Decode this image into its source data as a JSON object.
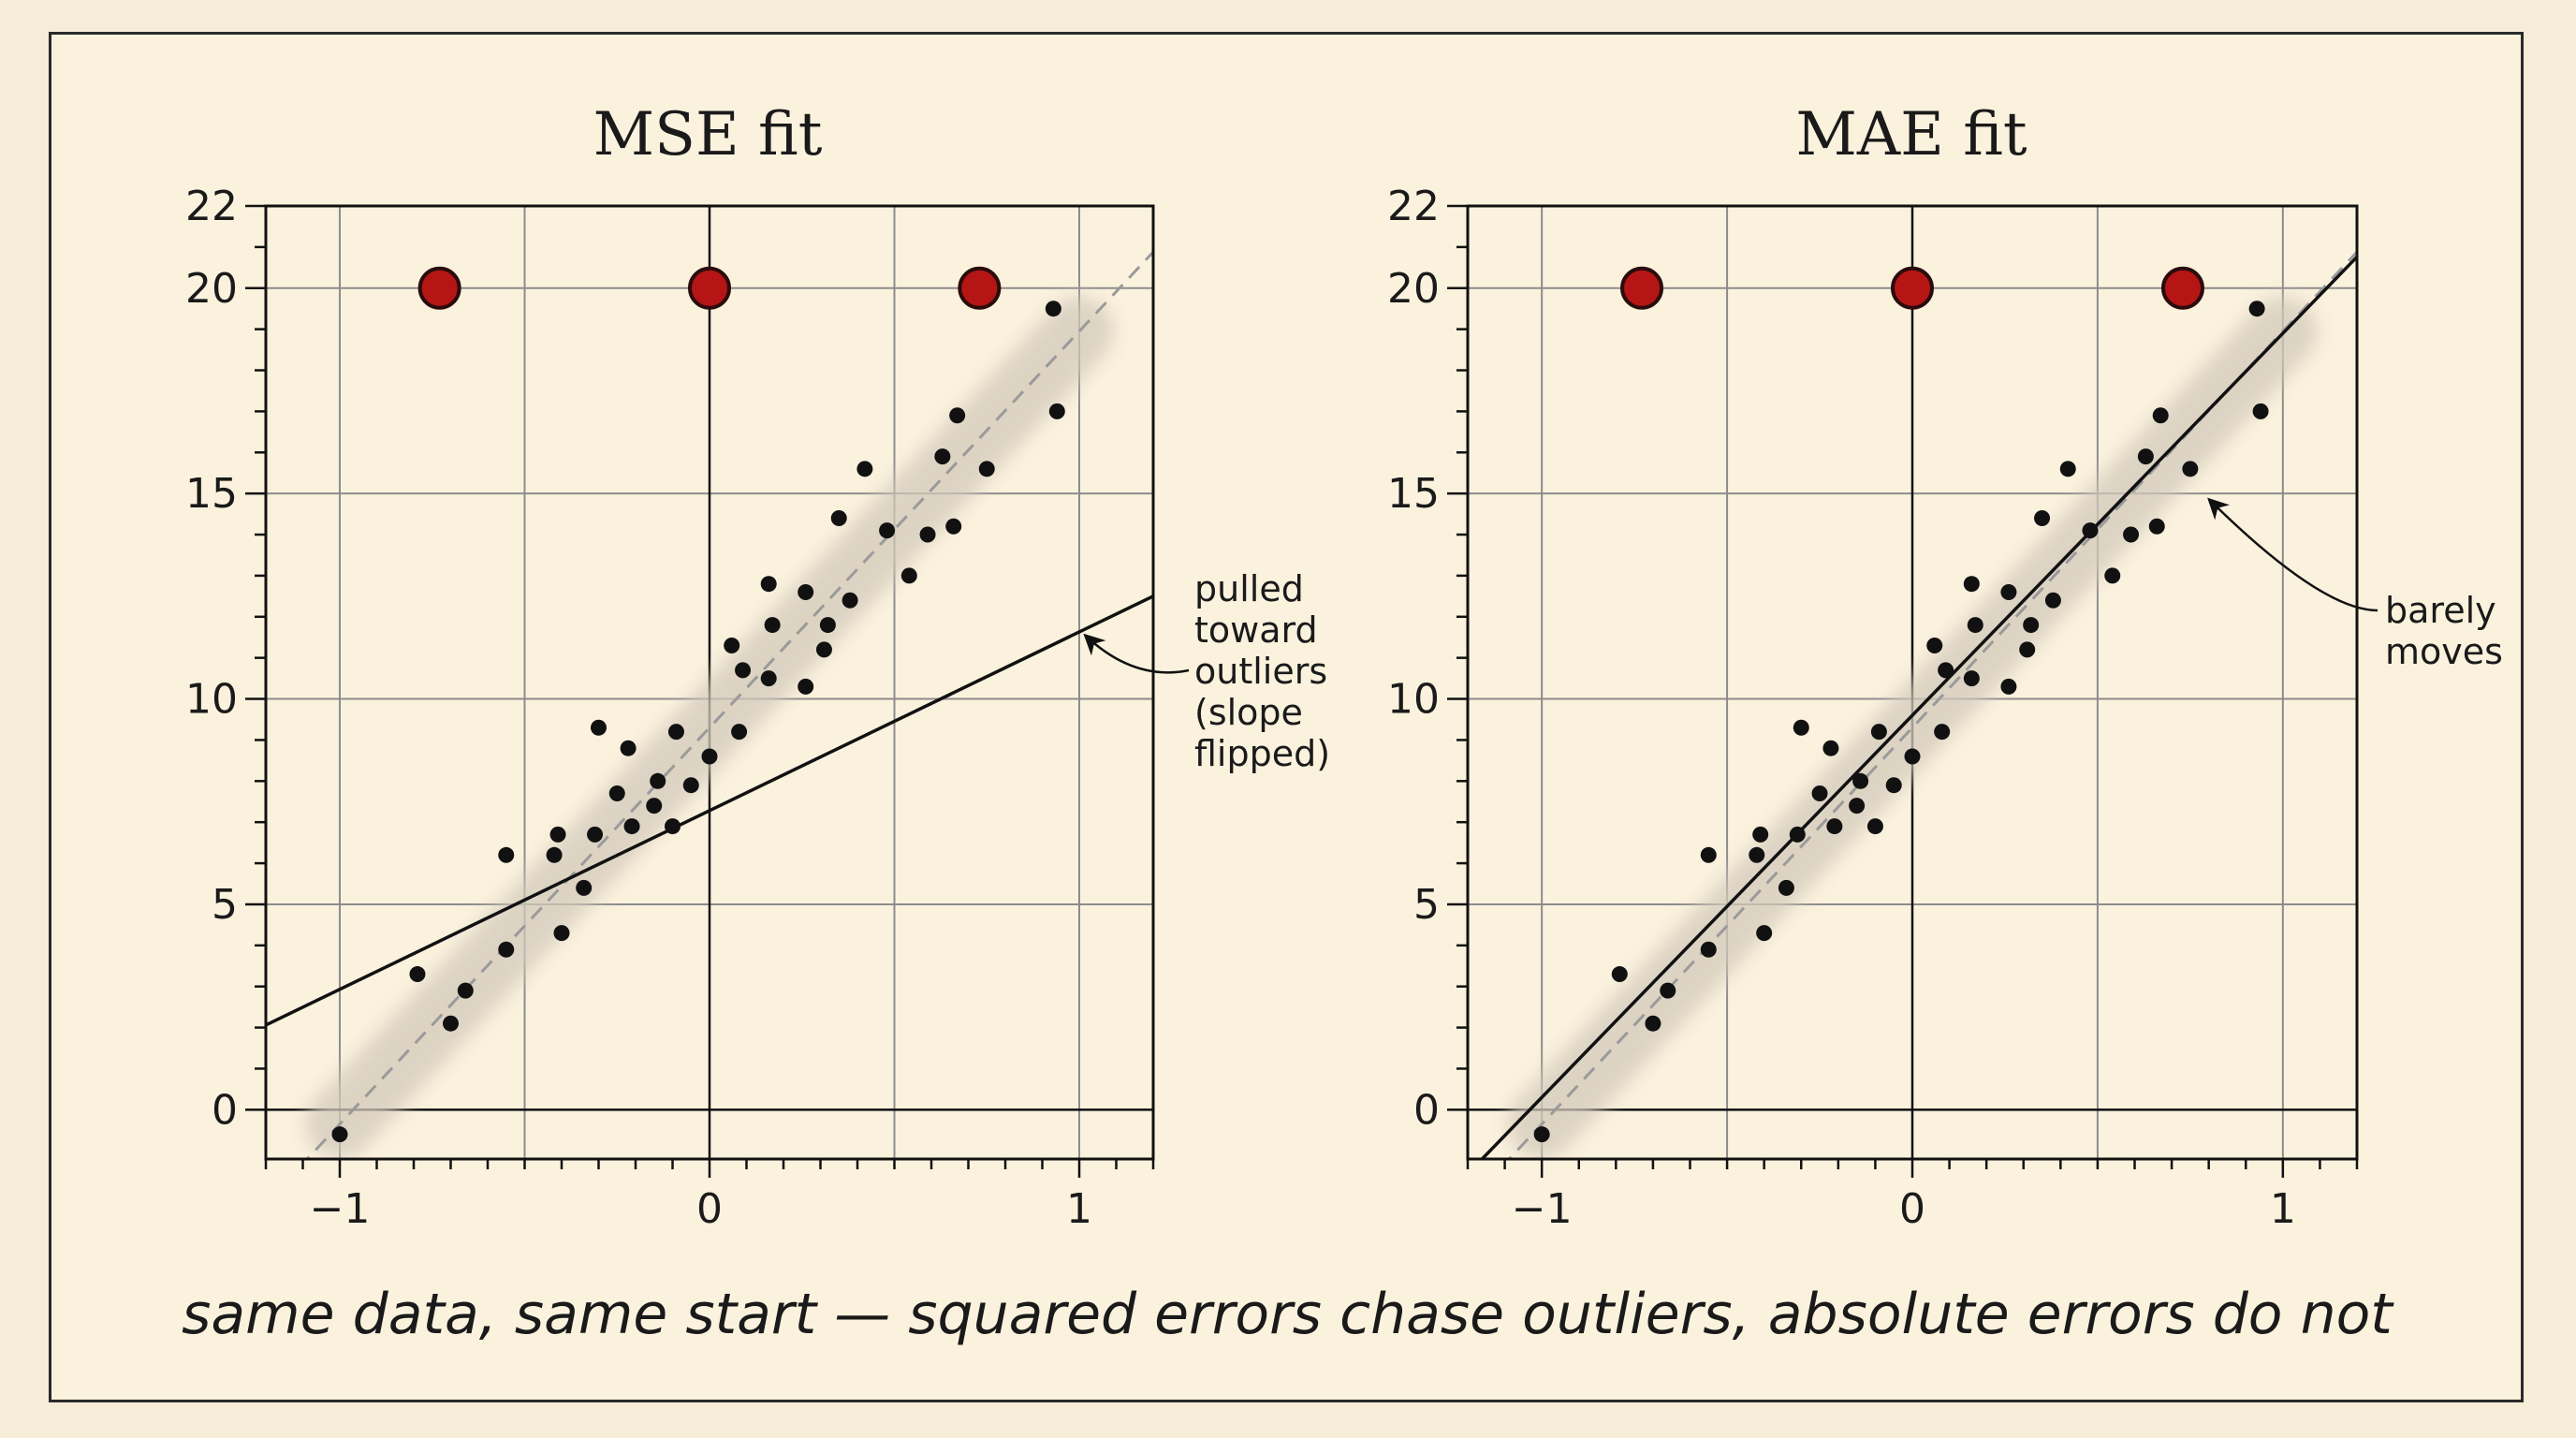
{
  "caption": "same data, same start — squared errors chase outliers, absolute errors do not",
  "colors": {
    "point": "#111111",
    "outlier_fill": "#b51515",
    "outlier_stroke": "#2b0c0c",
    "fit_line": "#111111",
    "reference_line": "#9a9a9a",
    "band": "#d2c9bb",
    "grid": "#8c8c8c",
    "paper": "#fbf2de"
  },
  "chart_data": [
    {
      "type": "scatter",
      "title": "MSE fit",
      "xlabel": "",
      "ylabel": "",
      "xlim": [
        -1.2,
        1.2
      ],
      "ylim": [
        -1.2,
        22
      ],
      "xticks": [
        -1,
        0,
        1
      ],
      "xtick_labels": [
        "−1",
        "0",
        "1"
      ],
      "yticks": [
        0,
        5,
        10,
        15,
        20,
        22
      ],
      "grid": true,
      "points": [
        [
          -1.0,
          -0.6
        ],
        [
          -0.79,
          3.3
        ],
        [
          -0.7,
          2.1
        ],
        [
          -0.66,
          2.9
        ],
        [
          -0.55,
          3.9
        ],
        [
          -0.55,
          6.2
        ],
        [
          -0.42,
          6.2
        ],
        [
          -0.41,
          6.7
        ],
        [
          -0.4,
          4.3
        ],
        [
          -0.34,
          5.4
        ],
        [
          -0.31,
          6.7
        ],
        [
          -0.3,
          9.3
        ],
        [
          -0.25,
          7.7
        ],
        [
          -0.22,
          8.8
        ],
        [
          -0.21,
          6.9
        ],
        [
          -0.15,
          7.4
        ],
        [
          -0.14,
          8.0
        ],
        [
          -0.1,
          6.9
        ],
        [
          -0.09,
          9.2
        ],
        [
          -0.05,
          7.9
        ],
        [
          0.0,
          8.6
        ],
        [
          0.06,
          11.3
        ],
        [
          0.08,
          9.2
        ],
        [
          0.09,
          10.7
        ],
        [
          0.16,
          10.5
        ],
        [
          0.16,
          12.8
        ],
        [
          0.17,
          11.8
        ],
        [
          0.26,
          10.3
        ],
        [
          0.26,
          12.6
        ],
        [
          0.31,
          11.2
        ],
        [
          0.32,
          11.8
        ],
        [
          0.35,
          14.4
        ],
        [
          0.38,
          12.4
        ],
        [
          0.42,
          15.6
        ],
        [
          0.48,
          14.1
        ],
        [
          0.54,
          13.0
        ],
        [
          0.59,
          14.0
        ],
        [
          0.63,
          15.9
        ],
        [
          0.66,
          14.2
        ],
        [
          0.67,
          16.9
        ],
        [
          0.75,
          15.6
        ],
        [
          0.93,
          19.5
        ],
        [
          0.94,
          17.0
        ]
      ],
      "outliers": [
        [
          -0.73,
          20
        ],
        [
          0.0,
          20
        ],
        [
          0.73,
          20
        ]
      ],
      "reference_line": {
        "slope": 9.65,
        "intercept": 9.3
      },
      "fit_line": {
        "slope": 4.35,
        "intercept": 7.28
      },
      "annotation": {
        "lines": [
          "pulled",
          "toward",
          "outliers",
          "(slope",
          "flipped)"
        ],
        "target": [
          1.0,
          11.6
        ]
      }
    },
    {
      "type": "scatter",
      "title": "MAE fit",
      "xlabel": "",
      "ylabel": "",
      "xlim": [
        -1.2,
        1.2
      ],
      "ylim": [
        -1.2,
        22
      ],
      "xticks": [
        -1,
        0,
        1
      ],
      "xtick_labels": [
        "−1",
        "0",
        "1"
      ],
      "yticks": [
        0,
        5,
        10,
        15,
        20,
        22
      ],
      "grid": true,
      "points": [
        [
          -1.0,
          -0.6
        ],
        [
          -0.79,
          3.3
        ],
        [
          -0.7,
          2.1
        ],
        [
          -0.66,
          2.9
        ],
        [
          -0.55,
          3.9
        ],
        [
          -0.55,
          6.2
        ],
        [
          -0.42,
          6.2
        ],
        [
          -0.41,
          6.7
        ],
        [
          -0.4,
          4.3
        ],
        [
          -0.34,
          5.4
        ],
        [
          -0.31,
          6.7
        ],
        [
          -0.3,
          9.3
        ],
        [
          -0.25,
          7.7
        ],
        [
          -0.22,
          8.8
        ],
        [
          -0.21,
          6.9
        ],
        [
          -0.15,
          7.4
        ],
        [
          -0.14,
          8.0
        ],
        [
          -0.1,
          6.9
        ],
        [
          -0.09,
          9.2
        ],
        [
          -0.05,
          7.9
        ],
        [
          0.0,
          8.6
        ],
        [
          0.06,
          11.3
        ],
        [
          0.08,
          9.2
        ],
        [
          0.09,
          10.7
        ],
        [
          0.16,
          10.5
        ],
        [
          0.16,
          12.8
        ],
        [
          0.17,
          11.8
        ],
        [
          0.26,
          10.3
        ],
        [
          0.26,
          12.6
        ],
        [
          0.31,
          11.2
        ],
        [
          0.32,
          11.8
        ],
        [
          0.35,
          14.4
        ],
        [
          0.38,
          12.4
        ],
        [
          0.42,
          15.6
        ],
        [
          0.48,
          14.1
        ],
        [
          0.54,
          13.0
        ],
        [
          0.59,
          14.0
        ],
        [
          0.63,
          15.9
        ],
        [
          0.66,
          14.2
        ],
        [
          0.67,
          16.9
        ],
        [
          0.75,
          15.6
        ],
        [
          0.93,
          19.5
        ],
        [
          0.94,
          17.0
        ]
      ],
      "outliers": [
        [
          -0.73,
          20
        ],
        [
          0.0,
          20
        ],
        [
          0.73,
          20
        ]
      ],
      "reference_line": {
        "slope": 9.65,
        "intercept": 9.3
      },
      "fit_line": {
        "slope": 9.3,
        "intercept": 9.6
      },
      "annotation": {
        "lines": [
          "barely",
          "moves"
        ],
        "target": [
          0.79,
          15.0
        ]
      }
    }
  ]
}
